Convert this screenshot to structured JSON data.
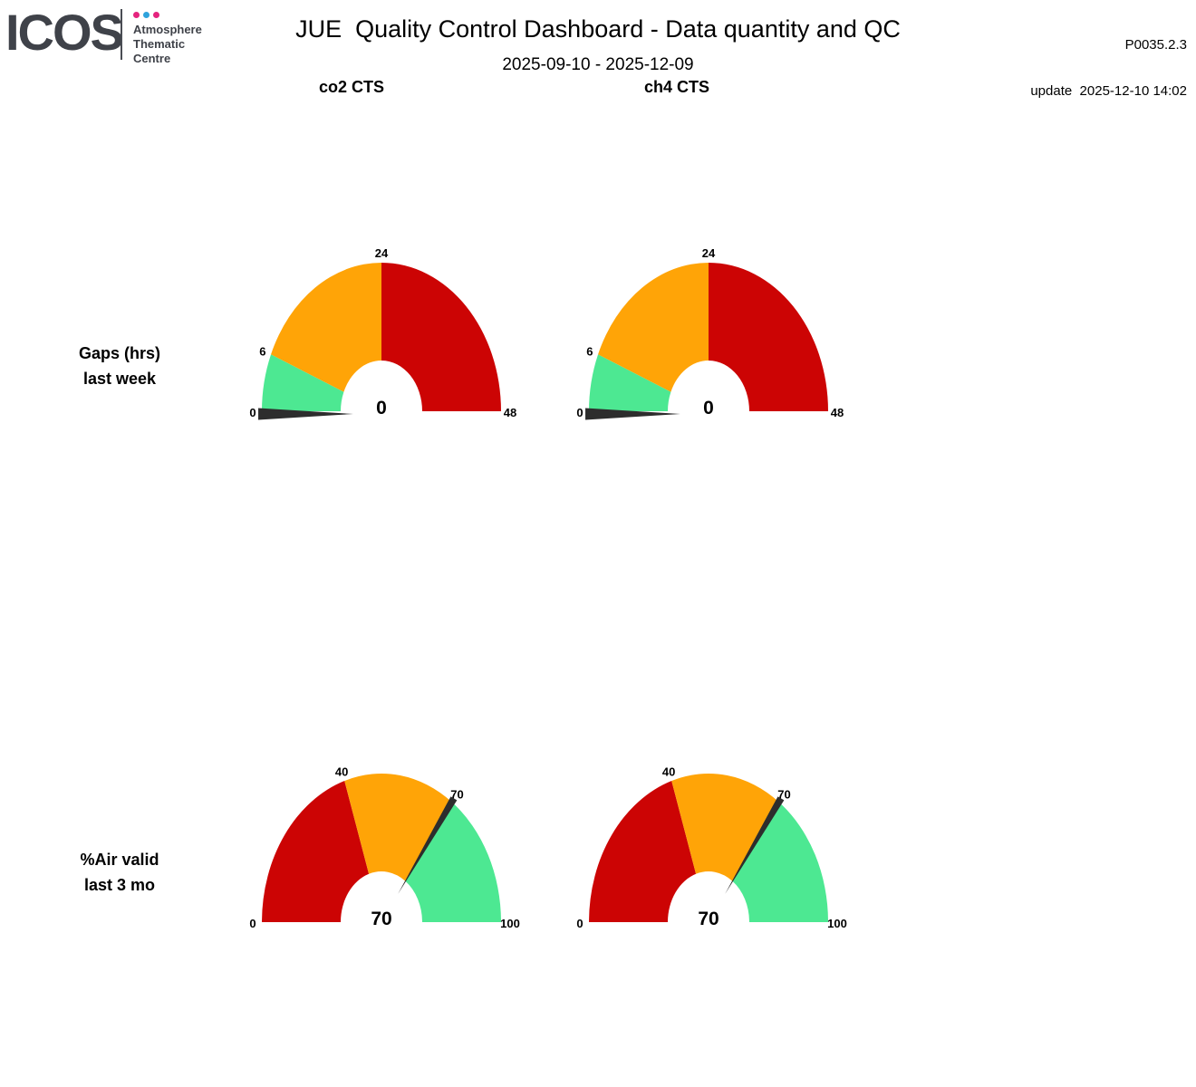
{
  "header": {
    "logo": {
      "name": "ICOS",
      "org_lines": [
        "Atmosphere",
        "Thematic",
        "Centre"
      ],
      "dot_colors": [
        "#e5247e",
        "#2ea3dc",
        "#e5247e"
      ]
    },
    "title": "JUE  Quality Control Dashboard - Data quantity and QC",
    "date_range": "2025-09-10 - 2025-12-09",
    "version": "P0035.2.3",
    "update_line": "update  2025-12-10 14:02"
  },
  "columns": [
    {
      "label": "co2 CTS"
    },
    {
      "label": "ch4 CTS"
    }
  ],
  "rows": [
    {
      "label_line1": "Gaps (hrs)",
      "label_line2": "last week"
    },
    {
      "label_line1": "%Air valid",
      "label_line2": "last 3 mo"
    }
  ],
  "colors": {
    "green": "#4de892",
    "orange": "#ffa407",
    "red": "#cc0404",
    "needle": "#2d2d2d"
  },
  "chart_data": [
    {
      "type": "gauge",
      "metric": "Gaps (hrs) last week",
      "species": "co2 CTS",
      "value": 0,
      "min": 0,
      "max": 48,
      "ticks": [
        0,
        6,
        24,
        48
      ],
      "segments": [
        {
          "from": 0,
          "to": 6,
          "color": "#4de892"
        },
        {
          "from": 6,
          "to": 24,
          "color": "#ffa407"
        },
        {
          "from": 24,
          "to": 48,
          "color": "#cc0404"
        }
      ],
      "needle_color": "#2d2d2d"
    },
    {
      "type": "gauge",
      "metric": "Gaps (hrs) last week",
      "species": "ch4 CTS",
      "value": 0,
      "min": 0,
      "max": 48,
      "ticks": [
        0,
        6,
        24,
        48
      ],
      "segments": [
        {
          "from": 0,
          "to": 6,
          "color": "#4de892"
        },
        {
          "from": 6,
          "to": 24,
          "color": "#ffa407"
        },
        {
          "from": 24,
          "to": 48,
          "color": "#cc0404"
        }
      ],
      "needle_color": "#2d2d2d"
    },
    {
      "type": "gauge",
      "metric": "%Air valid last 3 mo",
      "species": "co2 CTS",
      "value": 70,
      "min": 0,
      "max": 100,
      "ticks": [
        0,
        40,
        70,
        100
      ],
      "segments": [
        {
          "from": 0,
          "to": 40,
          "color": "#cc0404"
        },
        {
          "from": 40,
          "to": 70,
          "color": "#ffa407"
        },
        {
          "from": 70,
          "to": 100,
          "color": "#4de892"
        }
      ],
      "needle_color": "#2d2d2d"
    },
    {
      "type": "gauge",
      "metric": "%Air valid last 3 mo",
      "species": "ch4 CTS",
      "value": 70,
      "min": 0,
      "max": 100,
      "ticks": [
        0,
        40,
        70,
        100
      ],
      "segments": [
        {
          "from": 0,
          "to": 40,
          "color": "#cc0404"
        },
        {
          "from": 40,
          "to": 70,
          "color": "#ffa407"
        },
        {
          "from": 70,
          "to": 100,
          "color": "#4de892"
        }
      ],
      "needle_color": "#2d2d2d"
    }
  ]
}
